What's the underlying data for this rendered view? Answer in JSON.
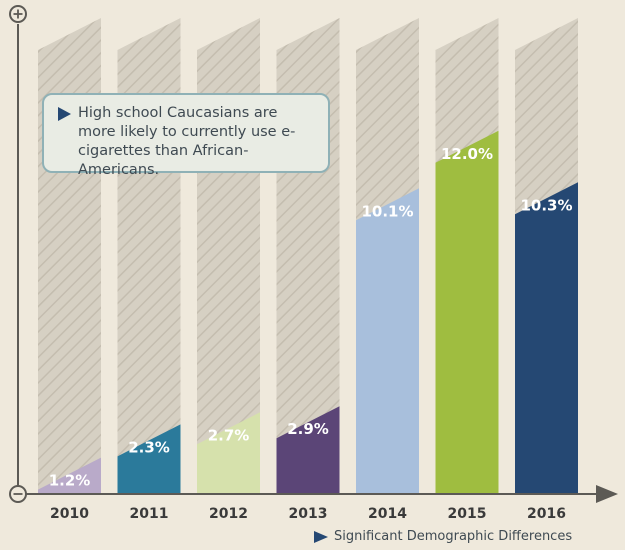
{
  "chart_data": {
    "type": "bar",
    "categories": [
      "2010",
      "2011",
      "2012",
      "2013",
      "2014",
      "2015",
      "2016"
    ],
    "values": [
      1.2,
      2.3,
      2.7,
      2.9,
      10.1,
      12.0,
      10.3
    ],
    "data_labels": [
      "1.2%",
      "2.3%",
      "2.7%",
      "2.9%",
      "10.1%",
      "12.0%",
      "10.3%"
    ],
    "colors": [
      "#b9aac9",
      "#2b7a9b",
      "#d6e1ac",
      "#5b4577",
      "#a8bfdc",
      "#9fbd40",
      "#254873"
    ],
    "title": "",
    "xlabel": "",
    "ylabel": "",
    "ylim": [
      0,
      15
    ],
    "grid": false,
    "background_bars": "hatched",
    "axis_symbols": {
      "top": "+",
      "bottom": "-"
    }
  },
  "annotation": {
    "text": "High school Caucasians are more likely to currently use e-cigarettes than African-Americans."
  },
  "footnote": {
    "text": "Significant Demographic Differences"
  },
  "colors": {
    "background": "#efe9dc",
    "track": "#d6d0c3",
    "hatch": "#c4bdaf",
    "axis": "#5c5a55",
    "arrow": "#254873"
  }
}
